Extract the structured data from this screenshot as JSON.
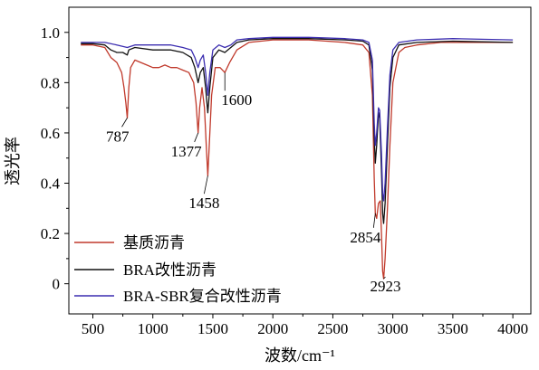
{
  "chart_data": {
    "type": "line",
    "xlabel": "波数/cm⁻¹",
    "ylabel": "透光率",
    "xlim": [
      300,
      4150
    ],
    "ylim": [
      -0.12,
      1.1
    ],
    "x_ticks": [
      500,
      1000,
      1500,
      2000,
      2500,
      3000,
      3500,
      4000
    ],
    "y_ticks": [
      0,
      0.2,
      0.4,
      0.6,
      0.8,
      1.0
    ],
    "x_tick_labels": [
      "500",
      "1000",
      "1500",
      "2000",
      "2500",
      "3000",
      "3500",
      "4000"
    ],
    "y_tick_labels": [
      "0",
      "0.2",
      "0.4",
      "0.6",
      "0.8",
      "1.0"
    ],
    "legend_position": "bottom-left",
    "series": [
      {
        "name": "基质沥青",
        "color": "#c0392b",
        "points": [
          [
            400,
            0.95
          ],
          [
            500,
            0.95
          ],
          [
            600,
            0.94
          ],
          [
            650,
            0.9
          ],
          [
            700,
            0.88
          ],
          [
            740,
            0.84
          ],
          [
            760,
            0.78
          ],
          [
            775,
            0.72
          ],
          [
            787,
            0.66
          ],
          [
            800,
            0.78
          ],
          [
            815,
            0.86
          ],
          [
            850,
            0.89
          ],
          [
            900,
            0.88
          ],
          [
            950,
            0.87
          ],
          [
            1000,
            0.86
          ],
          [
            1050,
            0.86
          ],
          [
            1100,
            0.87
          ],
          [
            1150,
            0.86
          ],
          [
            1200,
            0.86
          ],
          [
            1250,
            0.85
          ],
          [
            1300,
            0.84
          ],
          [
            1340,
            0.8
          ],
          [
            1360,
            0.72
          ],
          [
            1377,
            0.6
          ],
          [
            1390,
            0.7
          ],
          [
            1410,
            0.78
          ],
          [
            1430,
            0.7
          ],
          [
            1445,
            0.55
          ],
          [
            1458,
            0.43
          ],
          [
            1470,
            0.55
          ],
          [
            1490,
            0.75
          ],
          [
            1520,
            0.86
          ],
          [
            1560,
            0.86
          ],
          [
            1600,
            0.84
          ],
          [
            1640,
            0.88
          ],
          [
            1700,
            0.93
          ],
          [
            1800,
            0.96
          ],
          [
            2000,
            0.97
          ],
          [
            2300,
            0.97
          ],
          [
            2600,
            0.96
          ],
          [
            2750,
            0.95
          ],
          [
            2800,
            0.92
          ],
          [
            2830,
            0.75
          ],
          [
            2845,
            0.42
          ],
          [
            2854,
            0.28
          ],
          [
            2865,
            0.26
          ],
          [
            2880,
            0.32
          ],
          [
            2895,
            0.33
          ],
          [
            2905,
            0.2
          ],
          [
            2915,
            0.05
          ],
          [
            2923,
            0.02
          ],
          [
            2935,
            0.1
          ],
          [
            2955,
            0.3
          ],
          [
            2975,
            0.55
          ],
          [
            3000,
            0.8
          ],
          [
            3050,
            0.92
          ],
          [
            3100,
            0.94
          ],
          [
            3200,
            0.95
          ],
          [
            3400,
            0.96
          ],
          [
            3600,
            0.96
          ],
          [
            3800,
            0.96
          ],
          [
            4000,
            0.96
          ]
        ]
      },
      {
        "name": "BRA改性沥青",
        "color": "#111111",
        "points": [
          [
            400,
            0.955
          ],
          [
            500,
            0.955
          ],
          [
            600,
            0.95
          ],
          [
            650,
            0.93
          ],
          [
            700,
            0.92
          ],
          [
            750,
            0.92
          ],
          [
            787,
            0.91
          ],
          [
            800,
            0.93
          ],
          [
            850,
            0.94
          ],
          [
            1000,
            0.93
          ],
          [
            1150,
            0.93
          ],
          [
            1250,
            0.92
          ],
          [
            1320,
            0.9
          ],
          [
            1350,
            0.86
          ],
          [
            1377,
            0.8
          ],
          [
            1395,
            0.84
          ],
          [
            1420,
            0.86
          ],
          [
            1440,
            0.78
          ],
          [
            1458,
            0.68
          ],
          [
            1475,
            0.78
          ],
          [
            1500,
            0.9
          ],
          [
            1550,
            0.93
          ],
          [
            1600,
            0.92
          ],
          [
            1650,
            0.94
          ],
          [
            1700,
            0.96
          ],
          [
            1800,
            0.97
          ],
          [
            2000,
            0.975
          ],
          [
            2300,
            0.975
          ],
          [
            2600,
            0.97
          ],
          [
            2750,
            0.965
          ],
          [
            2800,
            0.95
          ],
          [
            2830,
            0.85
          ],
          [
            2845,
            0.58
          ],
          [
            2854,
            0.48
          ],
          [
            2865,
            0.55
          ],
          [
            2880,
            0.68
          ],
          [
            2890,
            0.66
          ],
          [
            2905,
            0.45
          ],
          [
            2915,
            0.28
          ],
          [
            2923,
            0.24
          ],
          [
            2935,
            0.32
          ],
          [
            2955,
            0.55
          ],
          [
            2975,
            0.78
          ],
          [
            3000,
            0.9
          ],
          [
            3050,
            0.95
          ],
          [
            3200,
            0.96
          ],
          [
            3500,
            0.965
          ],
          [
            4000,
            0.96
          ]
        ]
      },
      {
        "name": "BRA-SBR复合改性沥青",
        "color": "#3b2db0",
        "points": [
          [
            400,
            0.96
          ],
          [
            500,
            0.96
          ],
          [
            600,
            0.96
          ],
          [
            700,
            0.95
          ],
          [
            787,
            0.94
          ],
          [
            850,
            0.95
          ],
          [
            1000,
            0.95
          ],
          [
            1150,
            0.95
          ],
          [
            1250,
            0.94
          ],
          [
            1320,
            0.93
          ],
          [
            1350,
            0.9
          ],
          [
            1377,
            0.86
          ],
          [
            1395,
            0.89
          ],
          [
            1420,
            0.91
          ],
          [
            1440,
            0.84
          ],
          [
            1458,
            0.75
          ],
          [
            1475,
            0.84
          ],
          [
            1500,
            0.93
          ],
          [
            1550,
            0.95
          ],
          [
            1600,
            0.94
          ],
          [
            1650,
            0.95
          ],
          [
            1700,
            0.97
          ],
          [
            1800,
            0.975
          ],
          [
            2000,
            0.98
          ],
          [
            2300,
            0.98
          ],
          [
            2600,
            0.975
          ],
          [
            2750,
            0.97
          ],
          [
            2800,
            0.96
          ],
          [
            2830,
            0.89
          ],
          [
            2845,
            0.64
          ],
          [
            2854,
            0.55
          ],
          [
            2865,
            0.6
          ],
          [
            2880,
            0.7
          ],
          [
            2890,
            0.69
          ],
          [
            2905,
            0.52
          ],
          [
            2915,
            0.36
          ],
          [
            2923,
            0.33
          ],
          [
            2935,
            0.4
          ],
          [
            2955,
            0.62
          ],
          [
            2975,
            0.83
          ],
          [
            3000,
            0.93
          ],
          [
            3050,
            0.96
          ],
          [
            3200,
            0.97
          ],
          [
            3500,
            0.975
          ],
          [
            4000,
            0.97
          ]
        ]
      }
    ],
    "annotations": [
      {
        "text": "787",
        "x": 787,
        "y": 0.66
      },
      {
        "text": "1377",
        "x": 1377,
        "y": 0.6
      },
      {
        "text": "1458",
        "x": 1458,
        "y": 0.43
      },
      {
        "text": "1600",
        "x": 1600,
        "y": 0.84
      },
      {
        "text": "2854",
        "x": 2854,
        "y": 0.28
      },
      {
        "text": "2923",
        "x": 2923,
        "y": 0.02
      }
    ]
  }
}
